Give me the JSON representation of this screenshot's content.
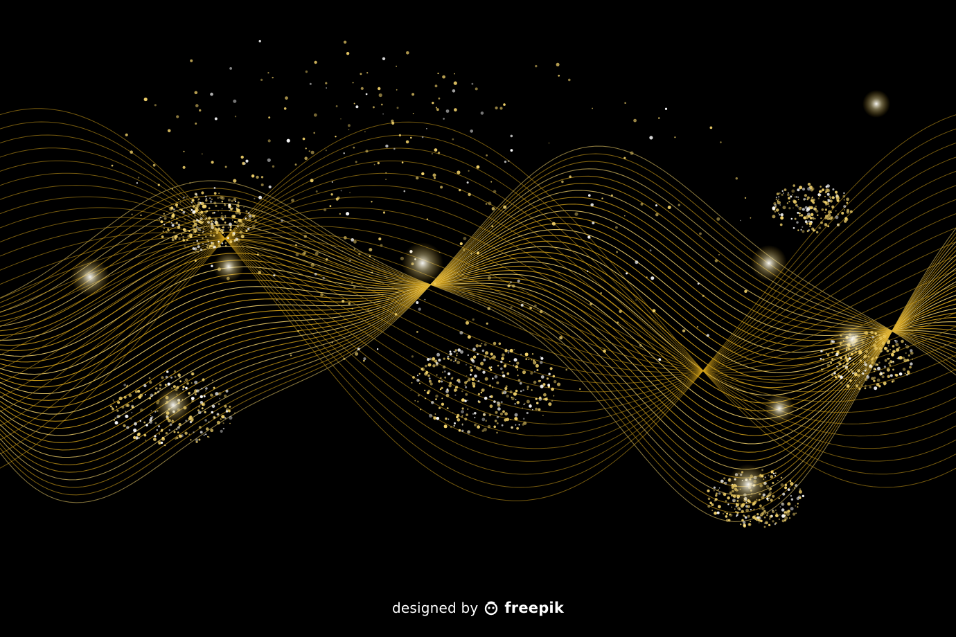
{
  "background_color": "#000000",
  "wave_colors": {
    "gold": "#d4a21a",
    "gold_light": "#f3d36b",
    "highlight": "#ffffff"
  },
  "credit": {
    "prefix": "designed by",
    "brand": "freepik",
    "logo_icon": "freepik-logo-icon"
  }
}
